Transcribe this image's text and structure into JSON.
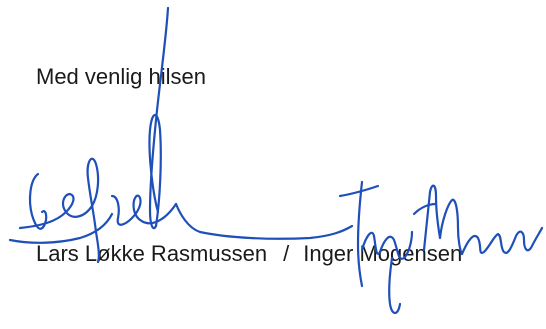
{
  "letter": {
    "closing": "Med venlig hilsen",
    "signatories": {
      "first": "Lars Løkke Rasmussen",
      "separator": "/",
      "second": "Inger Mogensen"
    }
  },
  "colors": {
    "text": "#1a1a1a",
    "signature_ink": "#1f4fb8",
    "background": "#ffffff"
  }
}
